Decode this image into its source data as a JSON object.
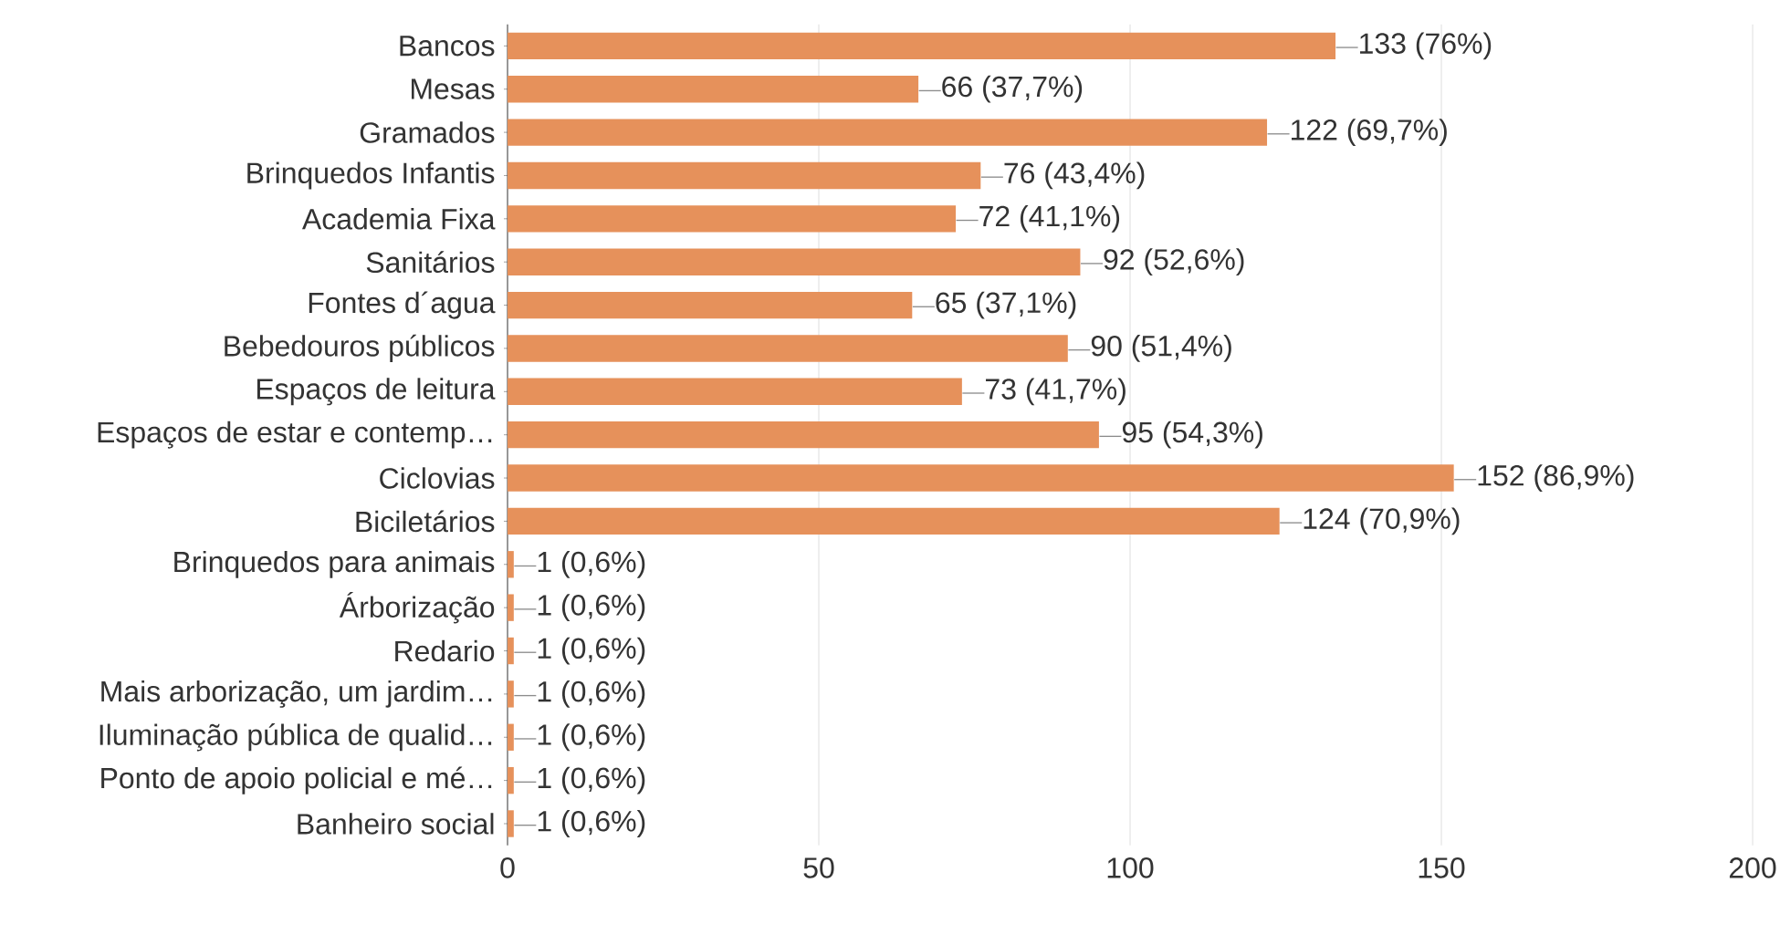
{
  "chart_data": {
    "type": "bar",
    "orientation": "horizontal",
    "categories": [
      "Bancos",
      "Mesas",
      "Gramados",
      "Brinquedos Infantis",
      "Academia Fixa",
      "Sanitários",
      "Fontes d´agua",
      "Bebedouros públicos",
      "Espaços de leitura",
      "Espaços de estar e contemp…",
      "Ciclovias",
      "Biciletários",
      "Brinquedos para animais",
      "Árborização",
      "Redario",
      "Mais arborização, um jardim…",
      "Iluminação pública de qualid…",
      "Ponto de apoio policial e mé…",
      "Banheiro social"
    ],
    "values": [
      133,
      66,
      122,
      76,
      72,
      92,
      65,
      90,
      73,
      95,
      152,
      124,
      1,
      1,
      1,
      1,
      1,
      1,
      1
    ],
    "value_labels": [
      "133 (76%)",
      "66 (37,7%)",
      "122 (69,7%)",
      "76 (43,4%)",
      "72 (41,1%)",
      "92 (52,6%)",
      "65 (37,1%)",
      "90 (51,4%)",
      "73 (41,7%)",
      "95 (54,3%)",
      "152 (86,9%)",
      "124 (70,9%)",
      "1 (0,6%)",
      "1 (0,6%)",
      "1 (0,6%)",
      "1 (0,6%)",
      "1 (0,6%)",
      "1 (0,6%)",
      "1 (0,6%)"
    ],
    "color": "#e6915b",
    "xlim": [
      0,
      200
    ],
    "xticks": [
      0,
      50,
      100,
      150,
      200
    ],
    "grid": "x"
  }
}
